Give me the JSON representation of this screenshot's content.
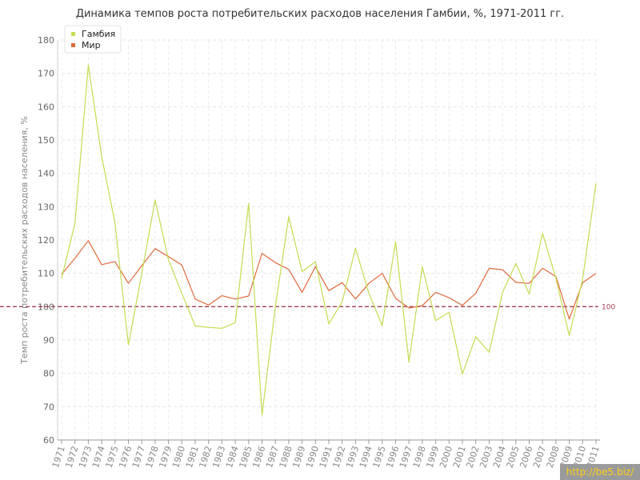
{
  "chart_data": {
    "type": "line",
    "title": "Динамика темпов роста потребительских расходов населения Гамбии, %, 1971-2011 гг.",
    "ylabel": "Темп роста потребительских расходов населения, %",
    "xlabel": "",
    "ylim": [
      60,
      180
    ],
    "yticks": [
      60,
      70,
      80,
      90,
      100,
      110,
      120,
      130,
      140,
      150,
      160,
      170,
      180
    ],
    "grid": true,
    "legend_position": "top-left",
    "x": [
      "1971",
      "1972",
      "1973",
      "1974",
      "1975",
      "1976",
      "1977",
      "1978",
      "1979",
      "1980",
      "1981",
      "1982",
      "1983",
      "1984",
      "1985",
      "1986",
      "1987",
      "1988",
      "1989",
      "1990",
      "1991",
      "1992",
      "1993",
      "1994",
      "1995",
      "1996",
      "1997",
      "1998",
      "1999",
      "2000",
      "2001",
      "2002",
      "2003",
      "2004",
      "2005",
      "2006",
      "2007",
      "2008",
      "2009",
      "2010",
      "2011"
    ],
    "series": [
      {
        "name": "Гамбия",
        "color": "#c4dc52",
        "values": [
          108.5,
          125,
          172.5,
          145,
          125,
          88.5,
          110,
          132,
          114,
          104,
          94.2,
          93.8,
          93.5,
          95.2,
          131,
          67.5,
          100,
          127,
          110.5,
          113.5,
          94.8,
          101.5,
          117.5,
          104,
          94.3,
          119.5,
          83.3,
          112,
          95.8,
          98.3,
          79.8,
          91,
          86.3,
          104.2,
          113,
          103.8,
          122,
          108.5,
          91.3,
          108.3,
          137
        ]
      },
      {
        "name": "Мир",
        "color": "#e06a3c",
        "values": [
          109.7,
          114.5,
          119.8,
          112.6,
          113.5,
          107,
          112.3,
          117.4,
          115,
          112.5,
          102.3,
          100.5,
          103.3,
          102.3,
          103.2,
          116,
          113.2,
          111.2,
          104.3,
          112,
          104.8,
          107.2,
          102.3,
          107,
          110,
          102.5,
          99.6,
          100.3,
          104.3,
          102.7,
          100.4,
          104,
          111.5,
          111.1,
          107.3,
          107,
          111.5,
          109,
          96.3,
          107.2,
          110
        ]
      }
    ],
    "reference_line": {
      "value": 100,
      "label": "100",
      "color": "#a04050"
    }
  },
  "watermark": "http://be5.biz/"
}
